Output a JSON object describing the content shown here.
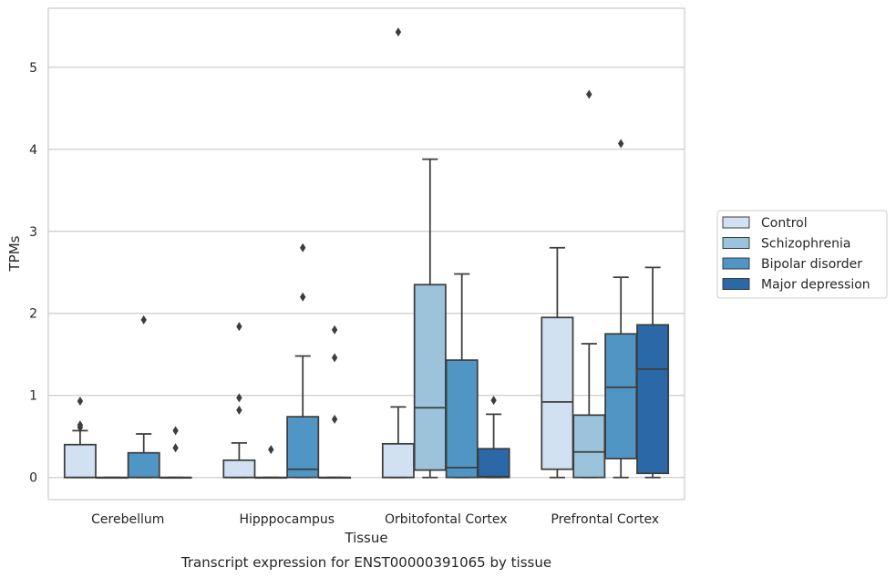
{
  "chart_data": {
    "type": "box",
    "xlabel": "Tissue",
    "ylabel": "TPMs",
    "caption": "Transcript expression for ENST00000391065 by tissue",
    "categories": [
      "Cerebellum",
      "Hipppocampus",
      "Orbitofontal Cortex",
      "Prefrontal Cortex"
    ],
    "ylim": [
      -0.27,
      5.72
    ],
    "yticks": [
      0,
      1,
      2,
      3,
      4,
      5
    ],
    "grid": "horizontal",
    "legend_position": "right",
    "series": [
      {
        "name": "Control",
        "color": "#d1e1f1",
        "boxes": [
          {
            "q1": 0,
            "median": 0,
            "q3": 0.4,
            "whisker_low": 0,
            "whisker_high": 0.57,
            "outliers": [
              0.93,
              0.61,
              0.64
            ]
          },
          {
            "q1": 0,
            "median": 0,
            "q3": 0.21,
            "whisker_low": 0,
            "whisker_high": 0.42,
            "outliers": [
              1.84,
              0.97,
              0.82
            ]
          },
          {
            "q1": 0,
            "median": 0,
            "q3": 0.41,
            "whisker_low": 0,
            "whisker_high": 0.86,
            "outliers": [
              5.43
            ]
          },
          {
            "q1": 0.1,
            "median": 0.92,
            "q3": 1.95,
            "whisker_low": 0,
            "whisker_high": 2.8,
            "outliers": []
          }
        ]
      },
      {
        "name": "Schizophrenia",
        "color": "#9bc3dc",
        "boxes": [
          {
            "q1": 0,
            "median": 0,
            "q3": 0,
            "whisker_low": 0,
            "whisker_high": 0,
            "outliers": []
          },
          {
            "q1": 0,
            "median": 0,
            "q3": 0,
            "whisker_low": 0,
            "whisker_high": 0,
            "outliers": [
              0.34
            ]
          },
          {
            "q1": 0.09,
            "median": 0.85,
            "q3": 2.35,
            "whisker_low": 0,
            "whisker_high": 3.88,
            "outliers": []
          },
          {
            "q1": 0,
            "median": 0.31,
            "q3": 0.76,
            "whisker_low": 0,
            "whisker_high": 1.63,
            "outliers": [
              4.67
            ]
          }
        ]
      },
      {
        "name": "Bipolar disorder",
        "color": "#5096c5",
        "boxes": [
          {
            "q1": 0,
            "median": 0,
            "q3": 0.3,
            "whisker_low": 0,
            "whisker_high": 0.53,
            "outliers": [
              1.92
            ]
          },
          {
            "q1": 0,
            "median": 0.1,
            "q3": 0.74,
            "whisker_low": 0,
            "whisker_high": 1.48,
            "outliers": [
              2.8,
              2.2
            ]
          },
          {
            "q1": 0,
            "median": 0.12,
            "q3": 1.43,
            "whisker_low": 0,
            "whisker_high": 2.48,
            "outliers": []
          },
          {
            "q1": 0.23,
            "median": 1.1,
            "q3": 1.75,
            "whisker_low": 0,
            "whisker_high": 2.44,
            "outliers": [
              4.07
            ]
          }
        ]
      },
      {
        "name": "Major depression",
        "color": "#2b68a8",
        "boxes": [
          {
            "q1": 0,
            "median": 0,
            "q3": 0,
            "whisker_low": 0,
            "whisker_high": 0,
            "outliers": [
              0.57,
              0.36
            ]
          },
          {
            "q1": 0,
            "median": 0,
            "q3": 0,
            "whisker_low": 0,
            "whisker_high": 0,
            "outliers": [
              1.8,
              1.46,
              0.71
            ]
          },
          {
            "q1": 0,
            "median": 0.01,
            "q3": 0.35,
            "whisker_low": 0,
            "whisker_high": 0.77,
            "outliers": [
              0.94
            ]
          },
          {
            "q1": 0.05,
            "median": 1.32,
            "q3": 1.86,
            "whisker_low": 0,
            "whisker_high": 2.56,
            "outliers": []
          }
        ]
      }
    ]
  }
}
